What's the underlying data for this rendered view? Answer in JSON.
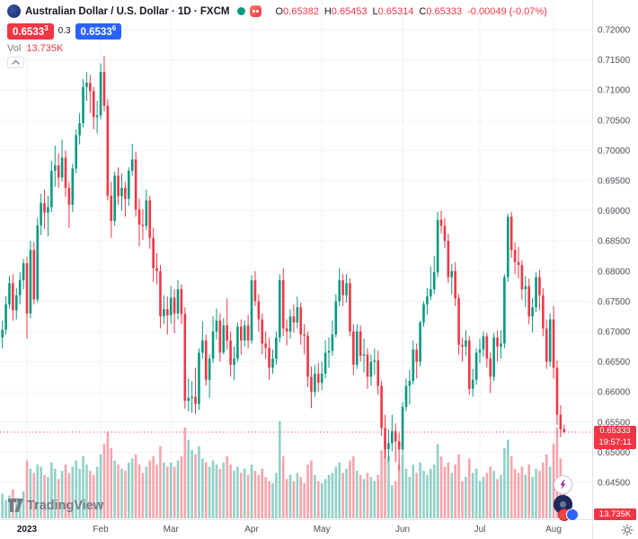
{
  "header": {
    "symbol_title": "Australian Dollar / U.S. Dollar · 1D · FXCM",
    "ohlc": {
      "o_label": "O",
      "o": "0.65382",
      "h_label": "H",
      "h": "0.65453",
      "l_label": "L",
      "l": "0.65314",
      "c_label": "C",
      "c": "0.65333"
    },
    "change": "-0.00049 (-0.07%)",
    "bid_main": "0.6533",
    "bid_sup": "3",
    "spread": "0.3",
    "ask_main": "0.6533",
    "ask_sup": "6",
    "vol_label": "Vol",
    "vol_value": "13.735K"
  },
  "price_axis": {
    "ticks": [
      "0.72000",
      "0.71500",
      "0.71000",
      "0.70500",
      "0.70000",
      "0.69500",
      "0.69000",
      "0.68500",
      "0.68000",
      "0.67500",
      "0.67000",
      "0.66500",
      "0.66000",
      "0.65500",
      "0.65000",
      "0.64500"
    ],
    "price_tag": "0.65333",
    "countdown": "19:57:11",
    "volume_tag": "13.735K"
  },
  "time_axis": {
    "ticks": [
      {
        "label": "2023",
        "index": 7,
        "major": true
      },
      {
        "label": "Feb",
        "index": 28
      },
      {
        "label": "Mar",
        "index": 48
      },
      {
        "label": "Apr",
        "index": 71
      },
      {
        "label": "May",
        "index": 91
      },
      {
        "label": "Jun",
        "index": 114
      },
      {
        "label": "Jul",
        "index": 136
      },
      {
        "label": "Aug",
        "index": 157
      }
    ]
  },
  "footer": {
    "logo_text": "TradingView"
  },
  "icons": {
    "symbol_logo": "aud-flag-circle",
    "market_status": "teal-dot",
    "minds": "red-rounded-square",
    "collapse": "chevron-up",
    "tv_mark": "tradingview-mark",
    "lightning": "lightning-bolt",
    "dark_badge": "dark-blue-circle",
    "reactions": "red-blue-circles",
    "gear": "gear"
  },
  "colors": {
    "up": "#089981",
    "down": "#f23645",
    "grid": "#f0f3fa",
    "axis_text": "#4c5058",
    "accent_blue": "#2962ff"
  },
  "chart_data": {
    "type": "candlestick",
    "title": "Australian Dollar / U.S. Dollar",
    "symbol": "AUDUSD",
    "interval": "1D",
    "exchange": "FXCM",
    "y_range": [
      0.645,
      0.72
    ],
    "current_price": 0.65333,
    "legend_position": "top-left",
    "grid": true,
    "candles": [
      [
        0.669,
        0.6718,
        0.6672,
        0.6703
      ],
      [
        0.6703,
        0.6758,
        0.6695,
        0.6745
      ],
      [
        0.6745,
        0.6792,
        0.6738,
        0.678
      ],
      [
        0.678,
        0.6795,
        0.6718,
        0.6735
      ],
      [
        0.6735,
        0.6772,
        0.672,
        0.676
      ],
      [
        0.676,
        0.6798,
        0.6745,
        0.6785
      ],
      [
        0.6785,
        0.682,
        0.677,
        0.6813
      ],
      [
        0.6813,
        0.6824,
        0.6688,
        0.673
      ],
      [
        0.673,
        0.685,
        0.6722,
        0.6835
      ],
      [
        0.6835,
        0.6848,
        0.6745,
        0.6753
      ],
      [
        0.6753,
        0.6888,
        0.6748,
        0.6876
      ],
      [
        0.6876,
        0.6928,
        0.686,
        0.6913
      ],
      [
        0.6913,
        0.6935,
        0.687,
        0.6897
      ],
      [
        0.6897,
        0.6925,
        0.6858,
        0.6906
      ],
      [
        0.6906,
        0.6983,
        0.6898,
        0.6966
      ],
      [
        0.6966,
        0.7008,
        0.694,
        0.6975
      ],
      [
        0.6975,
        0.6995,
        0.6938,
        0.6955
      ],
      [
        0.6955,
        0.7018,
        0.6948,
        0.6988
      ],
      [
        0.6988,
        0.7,
        0.6923,
        0.6938
      ],
      [
        0.6938,
        0.6948,
        0.6872,
        0.691
      ],
      [
        0.691,
        0.6978,
        0.6898,
        0.697
      ],
      [
        0.697,
        0.7035,
        0.6962,
        0.7025
      ],
      [
        0.7025,
        0.7062,
        0.701,
        0.7045
      ],
      [
        0.7045,
        0.7118,
        0.7038,
        0.7105
      ],
      [
        0.7105,
        0.713,
        0.7082,
        0.7112
      ],
      [
        0.7112,
        0.7125,
        0.7062,
        0.7098
      ],
      [
        0.7098,
        0.7105,
        0.7035,
        0.7055
      ],
      [
        0.7055,
        0.7082,
        0.7028,
        0.7058
      ],
      [
        0.7058,
        0.7144,
        0.7052,
        0.713
      ],
      [
        0.713,
        0.7157,
        0.7065,
        0.7074
      ],
      [
        0.7074,
        0.7085,
        0.6917,
        0.6925
      ],
      [
        0.6925,
        0.6948,
        0.6855,
        0.6883
      ],
      [
        0.6883,
        0.6965,
        0.6875,
        0.6958
      ],
      [
        0.6958,
        0.6972,
        0.691,
        0.6924
      ],
      [
        0.6924,
        0.6962,
        0.69,
        0.6938
      ],
      [
        0.6938,
        0.6948,
        0.689,
        0.692
      ],
      [
        0.692,
        0.6972,
        0.6908,
        0.6966
      ],
      [
        0.6966,
        0.7011,
        0.6958,
        0.6985
      ],
      [
        0.6985,
        0.6998,
        0.689,
        0.6902
      ],
      [
        0.6902,
        0.692,
        0.6841,
        0.6877
      ],
      [
        0.6877,
        0.6903,
        0.6852,
        0.6875
      ],
      [
        0.6875,
        0.6935,
        0.6868,
        0.6917
      ],
      [
        0.6917,
        0.6925,
        0.6837,
        0.6855
      ],
      [
        0.6855,
        0.6872,
        0.6782,
        0.6805
      ],
      [
        0.6805,
        0.683,
        0.6778,
        0.68
      ],
      [
        0.68,
        0.681,
        0.6705,
        0.6725
      ],
      [
        0.6725,
        0.676,
        0.6712,
        0.6737
      ],
      [
        0.6737,
        0.6758,
        0.6695,
        0.6727
      ],
      [
        0.6727,
        0.6775,
        0.6713,
        0.6756
      ],
      [
        0.6756,
        0.677,
        0.6697,
        0.673
      ],
      [
        0.673,
        0.6785,
        0.672,
        0.677
      ],
      [
        0.677,
        0.6778,
        0.6712,
        0.6729
      ],
      [
        0.6729,
        0.674,
        0.6572,
        0.6585
      ],
      [
        0.6585,
        0.6622,
        0.6568,
        0.659
      ],
      [
        0.659,
        0.6618,
        0.6565,
        0.6592
      ],
      [
        0.6592,
        0.664,
        0.6563,
        0.658
      ],
      [
        0.658,
        0.6672,
        0.657,
        0.6665
      ],
      [
        0.6665,
        0.6717,
        0.6655,
        0.6685
      ],
      [
        0.6685,
        0.6695,
        0.661,
        0.662
      ],
      [
        0.662,
        0.6662,
        0.659,
        0.6655
      ],
      [
        0.6655,
        0.6725,
        0.6648,
        0.67
      ],
      [
        0.67,
        0.6738,
        0.6687,
        0.6718
      ],
      [
        0.6718,
        0.673,
        0.665,
        0.6665
      ],
      [
        0.6665,
        0.6722,
        0.6662,
        0.671
      ],
      [
        0.671,
        0.6755,
        0.667,
        0.6685
      ],
      [
        0.6685,
        0.67,
        0.6625,
        0.6645
      ],
      [
        0.6645,
        0.6675,
        0.662,
        0.6655
      ],
      [
        0.6655,
        0.6715,
        0.665,
        0.6708
      ],
      [
        0.6708,
        0.672,
        0.6662,
        0.6685
      ],
      [
        0.6685,
        0.6718,
        0.6675,
        0.671
      ],
      [
        0.671,
        0.6728,
        0.6672,
        0.6685
      ],
      [
        0.6685,
        0.6793,
        0.668,
        0.6785
      ],
      [
        0.6785,
        0.68,
        0.6742,
        0.675
      ],
      [
        0.675,
        0.6762,
        0.67,
        0.672
      ],
      [
        0.672,
        0.673,
        0.6662,
        0.668
      ],
      [
        0.668,
        0.67,
        0.6655,
        0.6673
      ],
      [
        0.6673,
        0.669,
        0.662,
        0.664
      ],
      [
        0.664,
        0.667,
        0.663,
        0.6655
      ],
      [
        0.6655,
        0.67,
        0.6645,
        0.669
      ],
      [
        0.669,
        0.6795,
        0.6682,
        0.6785
      ],
      [
        0.6785,
        0.6805,
        0.6692,
        0.6705
      ],
      [
        0.6705,
        0.672,
        0.6677,
        0.67
      ],
      [
        0.67,
        0.6737,
        0.6688,
        0.6725
      ],
      [
        0.6725,
        0.6745,
        0.6698,
        0.6715
      ],
      [
        0.6715,
        0.6758,
        0.6705,
        0.674
      ],
      [
        0.674,
        0.6748,
        0.6678,
        0.6695
      ],
      [
        0.6695,
        0.6712,
        0.6662,
        0.6693
      ],
      [
        0.6693,
        0.67,
        0.6608,
        0.6625
      ],
      [
        0.6625,
        0.6642,
        0.6573,
        0.66
      ],
      [
        0.66,
        0.6645,
        0.6592,
        0.663
      ],
      [
        0.663,
        0.6648,
        0.66,
        0.6615
      ],
      [
        0.6615,
        0.665,
        0.6603,
        0.663
      ],
      [
        0.663,
        0.6685,
        0.6622,
        0.6665
      ],
      [
        0.6665,
        0.669,
        0.664,
        0.6668
      ],
      [
        0.6668,
        0.6718,
        0.666,
        0.6695
      ],
      [
        0.6695,
        0.6762,
        0.669,
        0.675
      ],
      [
        0.675,
        0.6805,
        0.6742,
        0.6785
      ],
      [
        0.6785,
        0.6795,
        0.6742,
        0.676
      ],
      [
        0.676,
        0.6795,
        0.6748,
        0.678
      ],
      [
        0.678,
        0.6788,
        0.6692,
        0.67
      ],
      [
        0.67,
        0.6712,
        0.6628,
        0.6645
      ],
      [
        0.6645,
        0.6712,
        0.6638,
        0.67
      ],
      [
        0.67,
        0.671,
        0.665,
        0.666
      ],
      [
        0.666,
        0.6688,
        0.6632,
        0.6662
      ],
      [
        0.6662,
        0.6672,
        0.6605,
        0.6625
      ],
      [
        0.6625,
        0.6662,
        0.661,
        0.665
      ],
      [
        0.665,
        0.6672,
        0.6628,
        0.6652
      ],
      [
        0.6652,
        0.6668,
        0.6595,
        0.661
      ],
      [
        0.661,
        0.6618,
        0.6527,
        0.654
      ],
      [
        0.654,
        0.6562,
        0.649,
        0.6505
      ],
      [
        0.6505,
        0.6538,
        0.6485,
        0.6515
      ],
      [
        0.6515,
        0.6562,
        0.6502,
        0.6535
      ],
      [
        0.6535,
        0.6548,
        0.6484,
        0.6518
      ],
      [
        0.6518,
        0.6532,
        0.647,
        0.6505
      ],
      [
        0.6505,
        0.6583,
        0.6498,
        0.6575
      ],
      [
        0.6575,
        0.6622,
        0.6568,
        0.661
      ],
      [
        0.661,
        0.6636,
        0.6579,
        0.6618
      ],
      [
        0.6618,
        0.6685,
        0.6612,
        0.667
      ],
      [
        0.667,
        0.668,
        0.6622,
        0.665
      ],
      [
        0.665,
        0.6718,
        0.6642,
        0.6715
      ],
      [
        0.6715,
        0.675,
        0.6708,
        0.6745
      ],
      [
        0.6745,
        0.6772,
        0.6728,
        0.6758
      ],
      [
        0.6758,
        0.6808,
        0.6752,
        0.677
      ],
      [
        0.677,
        0.6825,
        0.6762,
        0.6798
      ],
      [
        0.6798,
        0.6898,
        0.679,
        0.6885
      ],
      [
        0.6885,
        0.69,
        0.6862,
        0.6875
      ],
      [
        0.6875,
        0.6888,
        0.6838,
        0.685
      ],
      [
        0.685,
        0.6862,
        0.678,
        0.679
      ],
      [
        0.679,
        0.6812,
        0.6762,
        0.68
      ],
      [
        0.68,
        0.6815,
        0.6742,
        0.6755
      ],
      [
        0.6755,
        0.6762,
        0.6662,
        0.6678
      ],
      [
        0.6678,
        0.669,
        0.665,
        0.6675
      ],
      [
        0.6675,
        0.6702,
        0.666,
        0.6685
      ],
      [
        0.6685,
        0.6692,
        0.6595,
        0.6605
      ],
      [
        0.6605,
        0.6638,
        0.6592,
        0.662
      ],
      [
        0.662,
        0.6672,
        0.6612,
        0.6665
      ],
      [
        0.6665,
        0.6688,
        0.6648,
        0.667
      ],
      [
        0.667,
        0.67,
        0.6658,
        0.6692
      ],
      [
        0.6692,
        0.6698,
        0.664,
        0.6655
      ],
      [
        0.6655,
        0.6665,
        0.6598,
        0.6625
      ],
      [
        0.6625,
        0.6698,
        0.6618,
        0.669
      ],
      [
        0.669,
        0.6702,
        0.665,
        0.6675
      ],
      [
        0.6675,
        0.6702,
        0.6655,
        0.668
      ],
      [
        0.668,
        0.6795,
        0.6672,
        0.679
      ],
      [
        0.679,
        0.6895,
        0.6782,
        0.689
      ],
      [
        0.689,
        0.6898,
        0.6822,
        0.6835
      ],
      [
        0.6835,
        0.6848,
        0.6795,
        0.6815
      ],
      [
        0.6815,
        0.684,
        0.6788,
        0.681
      ],
      [
        0.681,
        0.6818,
        0.6752,
        0.677
      ],
      [
        0.677,
        0.6792,
        0.674,
        0.6775
      ],
      [
        0.6775,
        0.6788,
        0.6712,
        0.6725
      ],
      [
        0.6725,
        0.6755,
        0.6698,
        0.674
      ],
      [
        0.674,
        0.6798,
        0.6732,
        0.679
      ],
      [
        0.679,
        0.6802,
        0.6735,
        0.676
      ],
      [
        0.676,
        0.6772,
        0.6692,
        0.6705
      ],
      [
        0.6705,
        0.672,
        0.6638,
        0.665
      ],
      [
        0.665,
        0.673,
        0.6642,
        0.672
      ],
      [
        0.672,
        0.6742,
        0.6622,
        0.664
      ],
      [
        0.664,
        0.6652,
        0.6545,
        0.6562
      ],
      [
        0.6562,
        0.6578,
        0.6525,
        0.6538
      ],
      [
        0.65382,
        0.65453,
        0.65314,
        0.65333
      ]
    ],
    "volumes": [
      12,
      9,
      11,
      14,
      10,
      8,
      13,
      28,
      24,
      22,
      26,
      25,
      21,
      20,
      27,
      24,
      19,
      23,
      26,
      22,
      25,
      28,
      24,
      30,
      26,
      23,
      21,
      25,
      31,
      36,
      42,
      34,
      28,
      26,
      24,
      23,
      27,
      29,
      31,
      26,
      22,
      25,
      28,
      30,
      26,
      35,
      27,
      25,
      27,
      25,
      28,
      30,
      44,
      38,
      33,
      31,
      35,
      29,
      27,
      25,
      28,
      26,
      24,
      27,
      30,
      26,
      23,
      25,
      22,
      24,
      21,
      26,
      23,
      21,
      24,
      20,
      18,
      17,
      22,
      47,
      30,
      19,
      21,
      18,
      22,
      20,
      17,
      26,
      28,
      21,
      18,
      17,
      19,
      21,
      22,
      25,
      27,
      22,
      24,
      28,
      30,
      23,
      21,
      19,
      22,
      20,
      18,
      21,
      33,
      38,
      30,
      16,
      18,
      26,
      31,
      24,
      20,
      26,
      22,
      27,
      23,
      21,
      24,
      26,
      36,
      30,
      25,
      27,
      22,
      26,
      31,
      18,
      20,
      29,
      22,
      24,
      18,
      20,
      22,
      25,
      23,
      19,
      21,
      34,
      38,
      30,
      24,
      22,
      25,
      21,
      26,
      20,
      24,
      23,
      27,
      31,
      25,
      36,
      44,
      29,
      13.735
    ]
  }
}
